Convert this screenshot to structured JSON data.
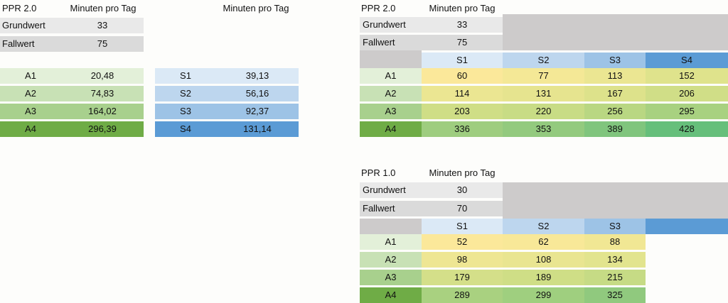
{
  "left_top": {
    "label": "PPR 2.0",
    "col_header": "Minuten pro Tag",
    "grundwert_label": "Grundwert",
    "grundwert": "33",
    "fallwert_label": "Fallwert",
    "fallwert": "75"
  },
  "right_header": "Minuten pro Tag",
  "a_rows": [
    {
      "label": "A1",
      "value": "20,48"
    },
    {
      "label": "A2",
      "value": "74,83"
    },
    {
      "label": "A3",
      "value": "164,02"
    },
    {
      "label": "A4",
      "value": "296,39"
    }
  ],
  "s_rows": [
    {
      "label": "S1",
      "value": "39,13"
    },
    {
      "label": "S2",
      "value": "56,16"
    },
    {
      "label": "S3",
      "value": "92,37"
    },
    {
      "label": "S4",
      "value": "131,14"
    }
  ],
  "matrix1": {
    "label": "PPR 2.0",
    "col_header": "Minuten pro Tag",
    "grundwert_label": "Grundwert",
    "grundwert": "33",
    "fallwert_label": "Fallwert",
    "fallwert": "75",
    "s_headers": [
      "S1",
      "S2",
      "S3",
      "S4"
    ],
    "a_labels": [
      "A1",
      "A2",
      "A3",
      "A4"
    ],
    "cells": [
      [
        "60",
        "77",
        "113",
        "152"
      ],
      [
        "114",
        "131",
        "167",
        "206"
      ],
      [
        "203",
        "220",
        "256",
        "295"
      ],
      [
        "336",
        "353",
        "389",
        "428"
      ]
    ]
  },
  "matrix2": {
    "label": "PPR 1.0",
    "col_header": "Minuten pro Tag",
    "grundwert_label": "Grundwert",
    "grundwert": "30",
    "fallwert_label": "Fallwert",
    "fallwert": "70",
    "s_headers": [
      "S1",
      "S2",
      "S3"
    ],
    "a_labels": [
      "A1",
      "A2",
      "A3",
      "A4"
    ],
    "cells": [
      [
        "52",
        "62",
        "88"
      ],
      [
        "98",
        "108",
        "134"
      ],
      [
        "179",
        "189",
        "215"
      ],
      [
        "289",
        "299",
        "325"
      ]
    ]
  },
  "colors": {
    "heat": [
      "#fbe89a",
      "#f1e794",
      "#dfe38c",
      "#c9dd87",
      "#b3d582",
      "#9fcf7f",
      "#8cca7e",
      "#66bf7b"
    ]
  }
}
